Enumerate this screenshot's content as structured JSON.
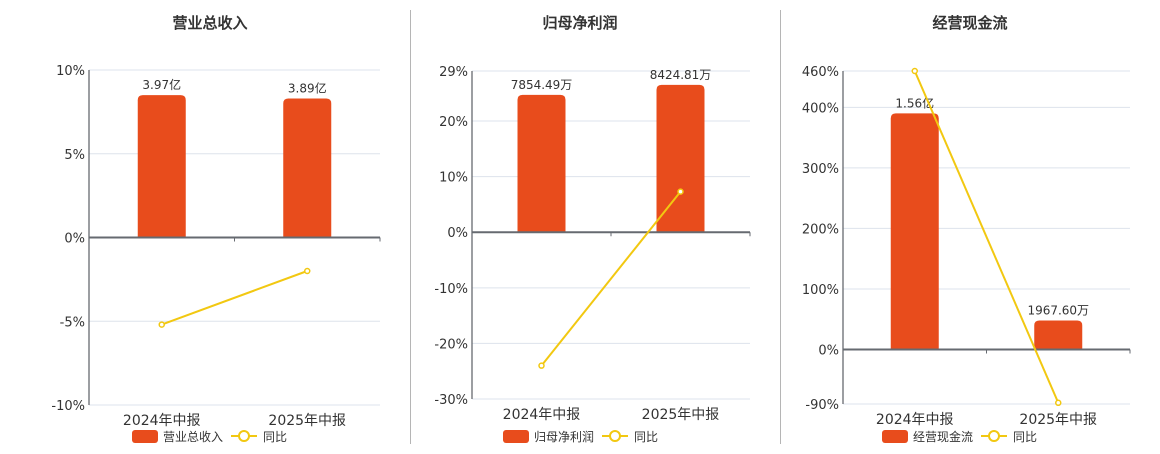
{
  "colors": {
    "bar": "#e84c1c",
    "line": "#f2c811",
    "grid": "#dde3ec",
    "axis": "#666a70",
    "text": "#333333",
    "divider": "#b5b5b5"
  },
  "legend": {
    "line_label": "同比"
  },
  "chart_data": [
    {
      "type": "bar",
      "title": "营业总收入",
      "categories": [
        "2024年中报",
        "2025年中报"
      ],
      "series": [
        {
          "name": "营业总收入",
          "kind": "bar",
          "labels": [
            "3.97亿",
            "3.89亿"
          ],
          "values_yuan": [
            397000000,
            389000000
          ],
          "bar_height_pct": [
            8.5,
            8.3
          ]
        },
        {
          "name": "同比",
          "kind": "line",
          "values": [
            -5.2,
            -2.0
          ]
        }
      ],
      "y_ticks": [
        "10%",
        "5%",
        "0%",
        "-5%",
        "-10%"
      ],
      "ylim": [
        -10,
        10
      ],
      "grid": true,
      "legend_position": "bottom"
    },
    {
      "type": "bar",
      "title": "归母净利润",
      "categories": [
        "2024年中报",
        "2025年中报"
      ],
      "series": [
        {
          "name": "归母净利润",
          "kind": "bar",
          "labels": [
            "7854.49万",
            "8424.81万"
          ],
          "values_yuan": [
            78544900,
            84248100
          ],
          "bar_height_pct": [
            24.7,
            26.5
          ]
        },
        {
          "name": "同比",
          "kind": "line",
          "values": [
            -24.0,
            7.3
          ]
        }
      ],
      "y_ticks": [
        "29%",
        "20%",
        "10%",
        "0%",
        "-10%",
        "-20%",
        "-30%"
      ],
      "ylim": [
        -30,
        29
      ],
      "grid": true,
      "legend_position": "bottom"
    },
    {
      "type": "bar",
      "title": "经营现金流",
      "categories": [
        "2024年中报",
        "2025年中报"
      ],
      "series": [
        {
          "name": "经营现金流",
          "kind": "bar",
          "labels": [
            "1.56亿",
            "1967.60万"
          ],
          "values_yuan": [
            156000000,
            19676000
          ],
          "bar_height_pct": [
            390,
            48
          ]
        },
        {
          "name": "同比",
          "kind": "line",
          "values": [
            460,
            -88
          ]
        }
      ],
      "y_ticks": [
        "460%",
        "400%",
        "300%",
        "200%",
        "100%",
        "0%",
        "-90%"
      ],
      "ylim": [
        -90,
        460
      ],
      "grid": true,
      "legend_position": "bottom"
    }
  ]
}
